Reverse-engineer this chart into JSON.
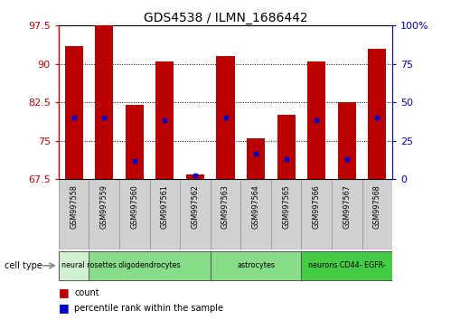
{
  "title": "GDS4538 / ILMN_1686442",
  "samples": [
    "GSM997558",
    "GSM997559",
    "GSM997560",
    "GSM997561",
    "GSM997562",
    "GSM997563",
    "GSM997564",
    "GSM997565",
    "GSM997566",
    "GSM997567",
    "GSM997568"
  ],
  "count_values": [
    93.5,
    97.5,
    82.0,
    90.5,
    68.5,
    91.5,
    75.5,
    80.0,
    90.5,
    82.5,
    93.0
  ],
  "percentile_values": [
    79.5,
    79.5,
    71.0,
    79.0,
    68.2,
    79.5,
    72.5,
    71.5,
    79.0,
    71.5,
    79.5
  ],
  "ylim_low": 67.5,
  "ylim_high": 97.5,
  "yticks": [
    67.5,
    75.0,
    82.5,
    90.0,
    97.5
  ],
  "ytick_labels": [
    "67.5",
    "75",
    "82.5",
    "90",
    "97.5"
  ],
  "right_yticks": [
    0,
    25,
    50,
    75,
    100
  ],
  "right_ytick_labels": [
    "0",
    "25",
    "50",
    "75",
    "100%"
  ],
  "cell_types": [
    {
      "label": "neural rosettes",
      "start": 0,
      "end": 1,
      "color": "#d0f0d0"
    },
    {
      "label": "oligodendrocytes",
      "start": 1,
      "end": 4,
      "color": "#88dd88"
    },
    {
      "label": "astrocytes",
      "start": 5,
      "end": 7,
      "color": "#88dd88"
    },
    {
      "label": "neurons CD44- EGFR-",
      "start": 8,
      "end": 10,
      "color": "#44cc44"
    }
  ],
  "bar_color": "#bb0000",
  "dot_color": "#0000cc",
  "sample_box_color": "#d0d0d0",
  "tick_color_left": "#cc0000",
  "tick_color_right": "#0000cc",
  "bg_color": "#ffffff",
  "bar_width": 0.6
}
